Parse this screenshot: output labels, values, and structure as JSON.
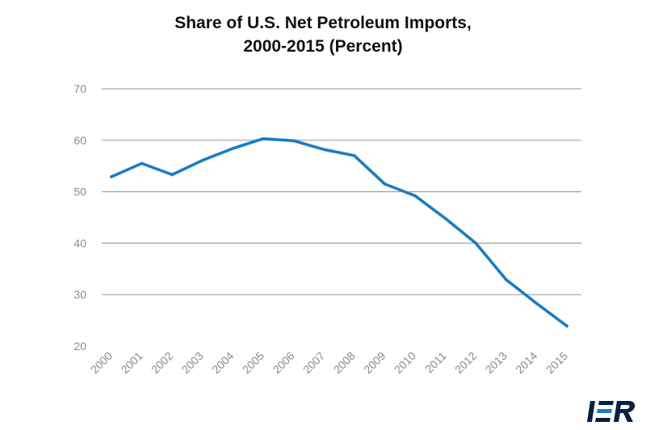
{
  "chart_data": {
    "type": "line",
    "title_lines": [
      "Share of U.S. Net Petroleum Imports,",
      "2000-2015 (Percent)"
    ],
    "xlabel": "",
    "ylabel": "",
    "categories": [
      "2000",
      "2001",
      "2002",
      "2003",
      "2004",
      "2005",
      "2006",
      "2007",
      "2008",
      "2009",
      "2010",
      "2011",
      "2012",
      "2013",
      "2014",
      "2015"
    ],
    "series": [
      {
        "values": [
          52.9,
          55.5,
          53.3,
          56.1,
          58.4,
          60.3,
          59.9,
          58.2,
          57.0,
          51.5,
          49.2,
          44.8,
          40.0,
          32.9,
          28.3,
          23.9
        ],
        "color": "#1a7dc0"
      }
    ],
    "ylim": [
      20,
      70
    ],
    "yticks": [
      20,
      30,
      40,
      50,
      60,
      70
    ],
    "grid": true,
    "grid_color": "#a3a3a3",
    "tick_label_color": "#8a8a8a"
  },
  "logo": {
    "text": "IER",
    "color": "#0b1f44",
    "accent_color": "#1a7dc0"
  }
}
